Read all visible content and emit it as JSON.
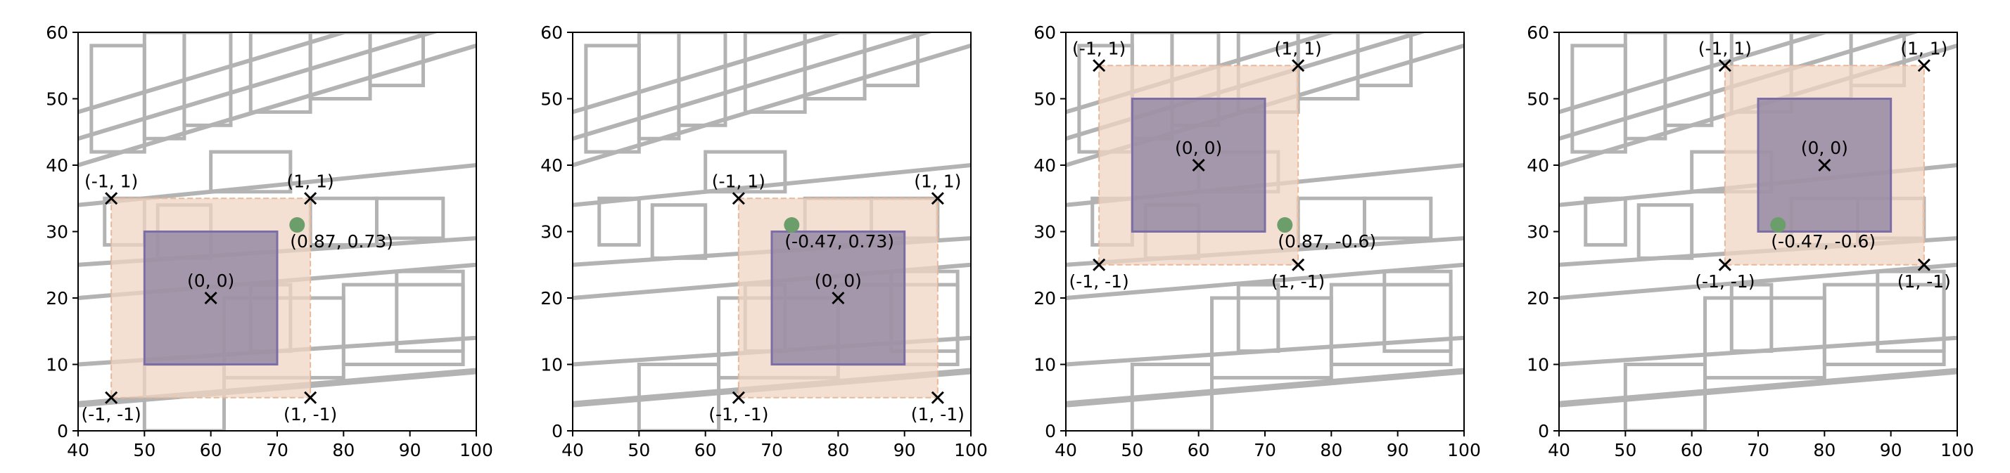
{
  "colors": {
    "wall": "#b3b3b3",
    "outer_fill": "#f0d5c4",
    "outer_edge": "#e8b89a",
    "inner_fill": "#8a7f9e",
    "inner_edge": "#7b6ea6",
    "green_point": "#6b9e6b",
    "marker": "#000000"
  },
  "chart_data": [
    {
      "type": "scatter",
      "xlim": [
        40,
        100
      ],
      "ylim": [
        0,
        60
      ],
      "xticks": [
        "40",
        "50",
        "60",
        "70",
        "80",
        "90",
        "100"
      ],
      "yticks": [
        "0",
        "10",
        "20",
        "30",
        "40",
        "50",
        "60"
      ],
      "grid": false,
      "outer_box": [
        [
          45,
          5
        ],
        [
          75,
          35
        ]
      ],
      "inner_box": [
        [
          50,
          10
        ],
        [
          70,
          30
        ]
      ],
      "markers": [
        {
          "x": 45,
          "y": 35,
          "label": "(-1, 1)"
        },
        {
          "x": 75,
          "y": 35,
          "label": "(1, 1)"
        },
        {
          "x": 60,
          "y": 20,
          "label": "(0, 0)"
        },
        {
          "x": 45,
          "y": 5,
          "label": "(-1, -1)"
        },
        {
          "x": 75,
          "y": 5,
          "label": "(1, -1)"
        }
      ],
      "point": {
        "x": 73,
        "y": 31,
        "label": "(0.87, 0.73)"
      }
    },
    {
      "type": "scatter",
      "xlim": [
        40,
        100
      ],
      "ylim": [
        0,
        60
      ],
      "xticks": [
        "40",
        "50",
        "60",
        "70",
        "80",
        "90",
        "100"
      ],
      "yticks": [
        "0",
        "10",
        "20",
        "30",
        "40",
        "50",
        "60"
      ],
      "grid": false,
      "outer_box": [
        [
          65,
          5
        ],
        [
          95,
          35
        ]
      ],
      "inner_box": [
        [
          70,
          10
        ],
        [
          90,
          30
        ]
      ],
      "markers": [
        {
          "x": 65,
          "y": 35,
          "label": "(-1, 1)"
        },
        {
          "x": 95,
          "y": 35,
          "label": "(1, 1)"
        },
        {
          "x": 80,
          "y": 20,
          "label": "(0, 0)"
        },
        {
          "x": 65,
          "y": 5,
          "label": "(-1, -1)"
        },
        {
          "x": 95,
          "y": 5,
          "label": "(1, -1)"
        }
      ],
      "point": {
        "x": 73,
        "y": 31,
        "label": "(-0.47, 0.73)"
      }
    },
    {
      "type": "scatter",
      "xlim": [
        40,
        100
      ],
      "ylim": [
        0,
        60
      ],
      "xticks": [
        "40",
        "50",
        "60",
        "70",
        "80",
        "90",
        "100"
      ],
      "yticks": [
        "0",
        "10",
        "20",
        "30",
        "40",
        "50",
        "60"
      ],
      "grid": false,
      "outer_box": [
        [
          45,
          25
        ],
        [
          75,
          55
        ]
      ],
      "inner_box": [
        [
          50,
          30
        ],
        [
          70,
          50
        ]
      ],
      "markers": [
        {
          "x": 45,
          "y": 55,
          "label": "(-1, 1)"
        },
        {
          "x": 75,
          "y": 55,
          "label": "(1, 1)"
        },
        {
          "x": 60,
          "y": 40,
          "label": "(0, 0)"
        },
        {
          "x": 45,
          "y": 25,
          "label": "(-1, -1)"
        },
        {
          "x": 75,
          "y": 25,
          "label": "(1, -1)"
        }
      ],
      "point": {
        "x": 73,
        "y": 31,
        "label": "(0.87, -0.6)"
      }
    },
    {
      "type": "scatter",
      "xlim": [
        40,
        100
      ],
      "ylim": [
        0,
        60
      ],
      "xticks": [
        "40",
        "50",
        "60",
        "70",
        "80",
        "90",
        "100"
      ],
      "yticks": [
        "0",
        "10",
        "20",
        "30",
        "40",
        "50",
        "60"
      ],
      "grid": false,
      "outer_box": [
        [
          65,
          25
        ],
        [
          95,
          55
        ]
      ],
      "inner_box": [
        [
          70,
          30
        ],
        [
          90,
          50
        ]
      ],
      "markers": [
        {
          "x": 65,
          "y": 55,
          "label": "(-1, 1)"
        },
        {
          "x": 95,
          "y": 55,
          "label": "(1, 1)"
        },
        {
          "x": 80,
          "y": 40,
          "label": "(0, 0)"
        },
        {
          "x": 65,
          "y": 25,
          "label": "(-1, -1)"
        },
        {
          "x": 95,
          "y": 25,
          "label": "(1, -1)"
        }
      ],
      "point": {
        "x": 73,
        "y": 31,
        "label": "(-0.47, -0.6)"
      }
    }
  ]
}
